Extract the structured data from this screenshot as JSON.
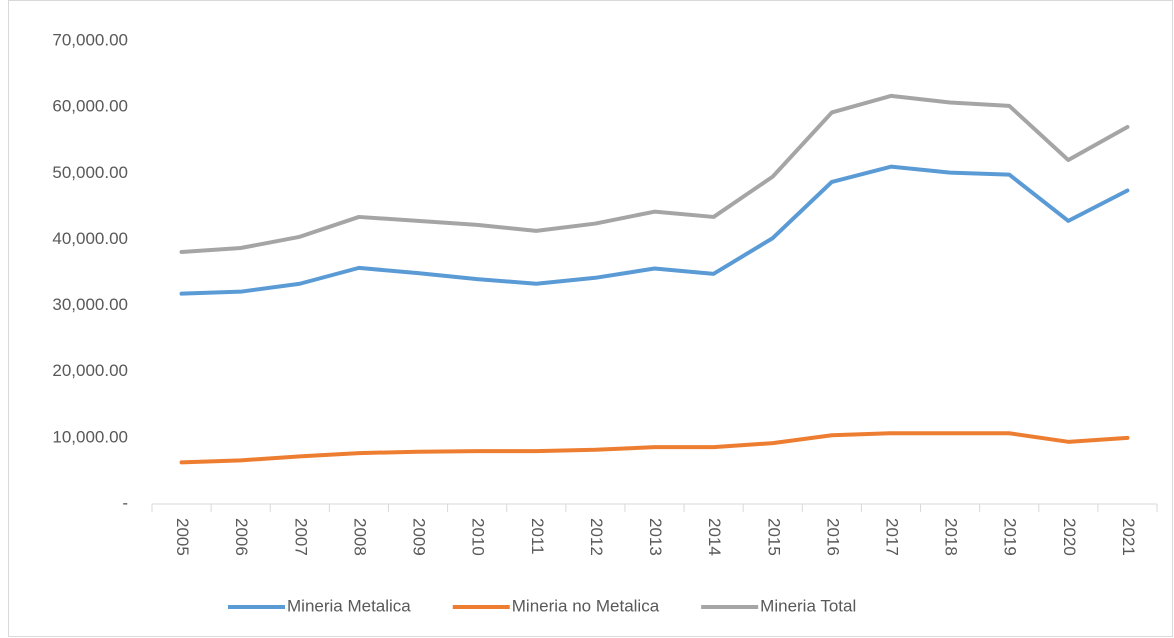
{
  "chart_data": {
    "type": "line",
    "categories": [
      "2005",
      "2006",
      "2007",
      "2008",
      "2009",
      "2010",
      "2011",
      "2012",
      "2013",
      "2014",
      "2015",
      "2016",
      "2017",
      "2018",
      "2019",
      "2020",
      "2021"
    ],
    "series": [
      {
        "name": "Mineria Metalica",
        "color": "#5b9bd5",
        "values": [
          31800,
          32100,
          33300,
          35700,
          34900,
          34000,
          33300,
          34200,
          35600,
          34800,
          40200,
          48700,
          51000,
          50100,
          49800,
          42800,
          47400
        ]
      },
      {
        "name": "Mineria no Metalica",
        "color": "#ed7d31",
        "values": [
          6300,
          6600,
          7200,
          7700,
          7900,
          8000,
          8000,
          8200,
          8600,
          8600,
          9200,
          10400,
          10700,
          10700,
          10700,
          9400,
          10000
        ]
      },
      {
        "name": "Mineria Total",
        "color": "#a5a5a5",
        "values": [
          38100,
          38700,
          40400,
          43400,
          42800,
          42200,
          41300,
          42400,
          44200,
          43400,
          49500,
          59200,
          61700,
          60700,
          60200,
          52000,
          57000
        ]
      }
    ],
    "ylim": [
      0,
      70000
    ],
    "yticks": [
      {
        "value": 0,
        "label": "-"
      },
      {
        "value": 10000,
        "label": "10,000.00"
      },
      {
        "value": 20000,
        "label": "20,000.00"
      },
      {
        "value": 30000,
        "label": "30,000.00"
      },
      {
        "value": 40000,
        "label": "40,000.00"
      },
      {
        "value": 50000,
        "label": "50,000.00"
      },
      {
        "value": 60000,
        "label": "60,000.00"
      },
      {
        "value": 70000,
        "label": "70,000.00"
      }
    ],
    "legend": "bottom"
  }
}
